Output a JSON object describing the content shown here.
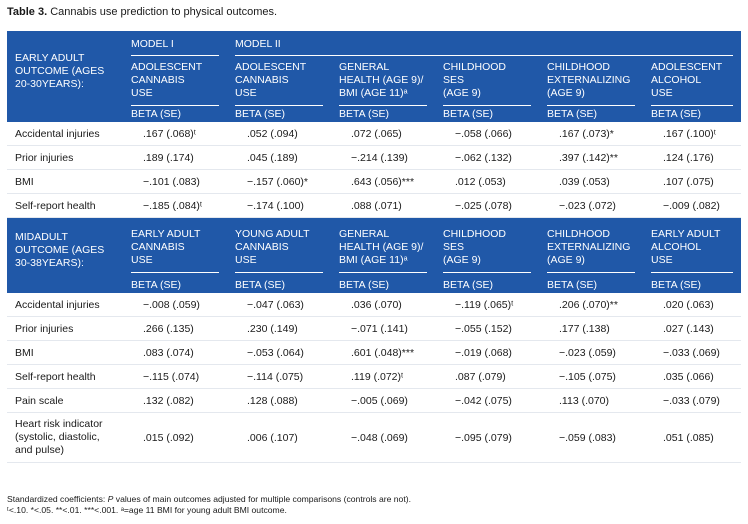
{
  "caption": {
    "label": "Table 3.",
    "text": "Cannabis use prediction to physical outcomes."
  },
  "section1": {
    "outcome_label": [
      "EARLY ADULT",
      "OUTCOME (AGES",
      "20-30YEARS):"
    ],
    "model1": "MODEL I",
    "model2": "MODEL II",
    "columns": [
      [
        "ADOLESCENT",
        "CANNABIS",
        "USE"
      ],
      [
        "ADOLESCENT",
        "CANNABIS",
        "USE"
      ],
      [
        "GENERAL",
        "HEALTH (AGE 9)/",
        "BMI (AGE 11)ᵃ"
      ],
      [
        "CHILDHOOD",
        "SES",
        "(AGE 9)"
      ],
      [
        "CHILDHOOD",
        "EXTERNALIZING",
        "(AGE 9)"
      ],
      [
        "ADOLESCENT",
        "ALCOHOL",
        "USE"
      ]
    ],
    "beta_label": "BETA (SE)",
    "rows": [
      {
        "label": "Accidental injuries",
        "values": [
          ".167 (.068)ᵗ",
          ".052 (.094)",
          ".072 (.065)",
          "−.058 (.066)",
          ".167 (.073)*",
          ".167 (.100)ᵗ"
        ]
      },
      {
        "label": "Prior injuries",
        "values": [
          ".189 (.174)",
          ".045 (.189)",
          "−.214 (.139)",
          "−.062 (.132)",
          ".397 (.142)**",
          ".124 (.176)"
        ]
      },
      {
        "label": "BMI",
        "values": [
          "−.101 (.083)",
          "−.157 (.060)*",
          ".643 (.056)***",
          ".012 (.053)",
          ".039 (.053)",
          ".107 (.075)"
        ]
      },
      {
        "label": "Self-report health",
        "values": [
          "−.185 (.084)ᵗ",
          "−.174 (.100)",
          ".088 (.071)",
          "−.025 (.078)",
          "−.023 (.072)",
          "−.009 (.082)"
        ]
      }
    ]
  },
  "section2": {
    "outcome_label": [
      "MIDADULT",
      "OUTCOME (AGES",
      "30-38YEARS):"
    ],
    "columns": [
      [
        "EARLY ADULT",
        "CANNABIS",
        "USE"
      ],
      [
        "YOUNG ADULT",
        "CANNABIS",
        "USE"
      ],
      [
        "GENERAL",
        "HEALTH (AGE 9)/",
        "BMI (AGE 11)ᵃ"
      ],
      [
        "CHILDHOOD",
        "SES",
        "(AGE 9)"
      ],
      [
        "CHILDHOOD",
        "EXTERNALIZING",
        "(AGE 9)"
      ],
      [
        "EARLY ADULT",
        "ALCOHOL",
        "USE"
      ]
    ],
    "beta_label": "BETA (SE)",
    "rows": [
      {
        "label": [
          "Accidental injuries"
        ],
        "values": [
          "−.008 (.059)",
          "−.047 (.063)",
          ".036 (.070)",
          "−.119 (.065)ᵗ",
          ".206 (.070)**",
          ".020 (.063)"
        ]
      },
      {
        "label": [
          "Prior injuries"
        ],
        "values": [
          ".266 (.135)",
          ".230 (.149)",
          "−.071 (.141)",
          "−.055 (.152)",
          ".177 (.138)",
          ".027 (.143)"
        ]
      },
      {
        "label": [
          "BMI"
        ],
        "values": [
          ".083 (.074)",
          "−.053 (.064)",
          ".601 (.048)***",
          "−.019 (.068)",
          "−.023 (.059)",
          "−.033 (.069)"
        ]
      },
      {
        "label": [
          "Self-report health"
        ],
        "values": [
          "−.115 (.074)",
          "−.114 (.075)",
          ".119 (.072)ᵗ",
          ".087 (.079)",
          "−.105 (.075)",
          ".035 (.066)"
        ]
      },
      {
        "label": [
          "Pain scale"
        ],
        "values": [
          ".132 (.082)",
          ".128 (.088)",
          "−.005 (.069)",
          "−.042 (.075)",
          ".113 (.070)",
          "−.033 (.079)"
        ]
      },
      {
        "label": [
          "Heart risk indicator",
          "(systolic, diastolic,",
          "and pulse)"
        ],
        "values": [
          ".015 (.092)",
          ".006 (.107)",
          "−.048 (.069)",
          "−.095 (.079)",
          "−.059 (.083)",
          ".051 (.085)"
        ]
      }
    ]
  },
  "footnote": {
    "line1_prefix": "Standardized coefficients: ",
    "line1_p": "P",
    "line1_suffix": " values of main outcomes adjusted for multiple comparisons (controls are not).",
    "line2": "ᵗ<.10. *<.05. **<.01. ***<.001. ᵃ=age 11 BMI for young adult BMI outcome."
  }
}
